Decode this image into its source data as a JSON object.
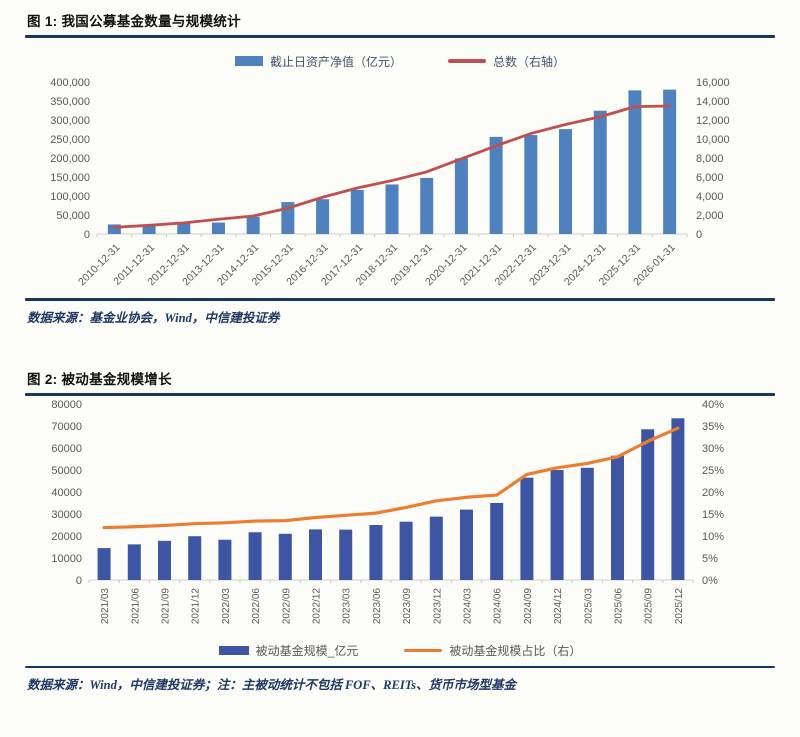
{
  "page": {
    "background": "#fcfcf9",
    "accent_rule_color": "#17375e",
    "source_text_color": "#1f3864"
  },
  "figure1": {
    "title": "图 1: 我国公募基金数量与规模统计",
    "source": "数据来源：基金业协会，Wind，中信建投证券"
  },
  "figure2": {
    "title": "图 2: 被动基金规模增长",
    "source": "数据来源：Wind，中信建投证券；注：主被动统计不包括 FOF、REITs、货币市场型基金"
  },
  "chart_data": [
    {
      "type": "bar",
      "subtype": "combo-bar-line",
      "title": "我国公募基金数量与规模统计",
      "legend_position": "top",
      "grid": false,
      "x_label_rotation": -45,
      "categories": [
        "2010-12-31",
        "2011-12-31",
        "2012-12-31",
        "2013-12-31",
        "2014-12-31",
        "2015-12-31",
        "2016-12-31",
        "2017-12-31",
        "2018-12-31",
        "2019-12-31",
        "2020-12-31",
        "2021-12-31",
        "2022-12-31",
        "2023-12-31",
        "2024-12-31",
        "2025-12-31",
        "2026-01-31"
      ],
      "series": [
        {
          "name": "截止日资产净值（亿元）",
          "type": "bar",
          "axis": "left",
          "color": "#4e81bd",
          "values": [
            25184,
            21918,
            28661,
            30021,
            45354,
            83971,
            91600,
            115995,
            130336,
            147674,
            198950,
            255600,
            260300,
            275967,
            324400,
            378000,
            380000
          ]
        },
        {
          "name": "总数（右轴）",
          "type": "line",
          "axis": "right",
          "color": "#c0504d",
          "values": [
            704,
            914,
            1173,
            1552,
            1897,
            2722,
            3867,
            4841,
            5626,
            6544,
            7913,
            9288,
            10576,
            11528,
            12341,
            13405,
            13470
          ]
        }
      ],
      "left_axis": {
        "min": 0,
        "max": 400000,
        "step": 50000,
        "format": "comma"
      },
      "right_axis": {
        "min": 0,
        "max": 16000,
        "step": 2000,
        "format": "comma"
      }
    },
    {
      "type": "bar",
      "subtype": "combo-bar-line",
      "title": "被动基金规模增长",
      "legend_position": "bottom",
      "grid": false,
      "x_label_rotation": -90,
      "categories": [
        "2021/03",
        "2021/06",
        "2021/09",
        "2021/12",
        "2022/03",
        "2022/06",
        "2022/09",
        "2022/12",
        "2023/03",
        "2023/06",
        "2023/09",
        "2023/12",
        "2024/03",
        "2024/06",
        "2024/09",
        "2024/12",
        "2025/03",
        "2025/06",
        "2025/09",
        "2025/12"
      ],
      "series": [
        {
          "name": "被动基金规模_亿元",
          "type": "bar",
          "axis": "left",
          "color": "#3d55a3",
          "values": [
            14500,
            16200,
            17800,
            19900,
            18300,
            21700,
            21000,
            23000,
            22900,
            25000,
            26500,
            28800,
            32000,
            35000,
            46500,
            50000,
            51000,
            56500,
            68500,
            73500
          ]
        },
        {
          "name": "被动基金规模占比（右）",
          "type": "line",
          "axis": "right",
          "color": "#ed7d31",
          "values": [
            11.9,
            12.1,
            12.4,
            12.8,
            13.0,
            13.4,
            13.5,
            14.2,
            14.7,
            15.2,
            16.5,
            18.0,
            18.8,
            19.3,
            24.0,
            25.5,
            26.5,
            28.0,
            31.5,
            34.5
          ]
        }
      ],
      "left_axis": {
        "min": 0,
        "max": 80000,
        "step": 10000,
        "format": "plain"
      },
      "right_axis": {
        "min": 0,
        "max": 40,
        "step": 5,
        "format": "percent"
      }
    }
  ]
}
